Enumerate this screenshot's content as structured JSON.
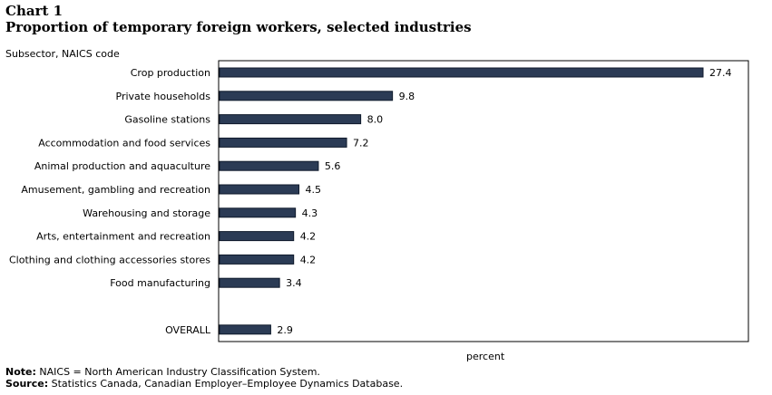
{
  "header": {
    "chart_number": "Chart 1",
    "title": "Proportion of temporary foreign workers, selected industries"
  },
  "footer": {
    "note_label": "Note:",
    "note_text": "NAICS = North American Industry Classification System.",
    "source_label": "Source:",
    "source_text": "Statistics Canada, Canadian Employer–Employee Dynamics Database."
  },
  "colors": {
    "bar": "#2b3b55",
    "bar_stroke": "#0f1a2b",
    "frame": "#000000"
  },
  "chart_data": {
    "type": "bar",
    "orientation": "horizontal",
    "title": "Proportion of temporary foreign workers, selected industries",
    "xlabel": "percent",
    "ylabel": "Subsector, NAICS code",
    "categories": [
      "Crop production",
      "Private households",
      "Gasoline stations",
      "Accommodation and food services",
      "Animal production and aquaculture",
      "Amusement, gambling and recreation",
      "Warehousing and storage",
      "Arts, entertainment and recreation",
      "Clothing and clothing accessories stores",
      "Food manufacturing",
      "",
      "OVERALL"
    ],
    "values": [
      27.4,
      9.8,
      8.0,
      7.2,
      5.6,
      4.5,
      4.3,
      4.2,
      4.2,
      3.4,
      null,
      2.9
    ],
    "value_labels": [
      "27.4",
      "9.8",
      "8.0",
      "7.2",
      "5.6",
      "4.5",
      "4.3",
      "4.2",
      "4.2",
      "3.4",
      "",
      "2.9"
    ],
    "grid": false,
    "legend": "none"
  }
}
